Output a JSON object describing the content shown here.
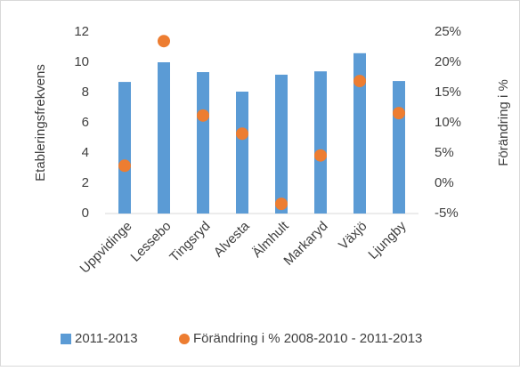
{
  "chart_data": {
    "type": "bar_dot",
    "categories": [
      "Uppvidinge",
      "Lessebo",
      "Tingsryd",
      "Alvesta",
      "Älmhult",
      "Markaryd",
      "Växjö",
      "Ljungby"
    ],
    "y_label": "Etableringsfrekvens",
    "y2_label": "Förändring i %",
    "ylim": [
      0,
      12
    ],
    "yticks": [
      0,
      2,
      4,
      6,
      8,
      10,
      12
    ],
    "y2lim": [
      -5,
      25
    ],
    "y2ticks": [
      {
        "value": -5,
        "label": "-5%"
      },
      {
        "value": 0,
        "label": "0%"
      },
      {
        "value": 5,
        "label": "5%"
      },
      {
        "value": 10,
        "label": "10%"
      },
      {
        "value": 15,
        "label": "15%"
      },
      {
        "value": 20,
        "label": "20%"
      },
      {
        "value": 25,
        "label": "25%"
      }
    ],
    "series": [
      {
        "name": "2011-2013",
        "color": "#5b9bd5",
        "values": [
          8.7,
          10.0,
          9.35,
          8.06,
          9.18,
          9.4,
          10.6,
          8.76
        ]
      },
      {
        "name": "Förändring i % 2008-2010 - 2011-2013",
        "color": "#ed7d31",
        "axis": "y2",
        "values": [
          2.9,
          23.5,
          11.2,
          8.2,
          -3.4,
          4.6,
          16.9,
          11.6
        ]
      }
    ],
    "legend": "bottom"
  }
}
